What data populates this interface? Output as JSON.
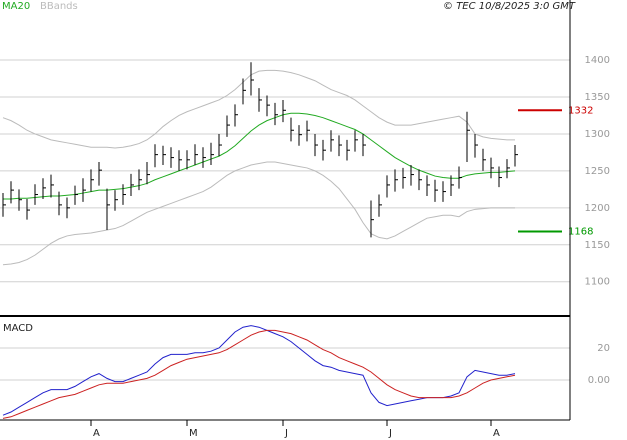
{
  "chart_data": [
    {
      "type": "ohlc",
      "legend": [
        {
          "name": "MA20",
          "color": "#22aa22"
        },
        {
          "name": "BBands",
          "color": "#bbbbbb"
        }
      ],
      "note": "© TEC 10/8/2025 3:0 GMT",
      "categories": [
        null,
        null,
        null,
        null,
        null,
        null,
        null,
        null,
        null,
        null,
        null,
        "A",
        null,
        null,
        null,
        null,
        null,
        null,
        null,
        null,
        null,
        null,
        null,
        "M",
        null,
        null,
        null,
        null,
        null,
        null,
        null,
        null,
        null,
        null,
        null,
        "J",
        null,
        null,
        null,
        null,
        null,
        null,
        null,
        null,
        null,
        null,
        null,
        null,
        "J",
        null,
        null,
        null,
        null,
        null,
        null,
        null,
        null,
        null,
        null,
        null,
        null,
        "A",
        null,
        null,
        null
      ],
      "color": "#000000",
      "values": [
        1204,
        1224,
        1211,
        1197,
        1218,
        1227,
        1231,
        1204,
        1200,
        1218,
        1224,
        1238,
        1251,
        1204,
        1211,
        1218,
        1231,
        1238,
        1245,
        1272,
        1272,
        1268,
        1265,
        1265,
        1272,
        1268,
        1272,
        1285,
        1312,
        1326,
        1359,
        1373,
        1346,
        1339,
        1326,
        1332,
        1305,
        1299,
        1305,
        1285,
        1278,
        1292,
        1285,
        1278,
        1292,
        1285,
        1184,
        1204,
        1231,
        1238,
        1241,
        1245,
        1238,
        1231,
        1224,
        1222,
        1231,
        1241,
        1305,
        1285,
        1265,
        1254,
        1241,
        1254,
        1272
      ],
      "high": [
        1220,
        1236,
        1225,
        1212,
        1232,
        1240,
        1245,
        1222,
        1214,
        1230,
        1240,
        1252,
        1262,
        1226,
        1224,
        1232,
        1246,
        1252,
        1262,
        1286,
        1284,
        1282,
        1278,
        1278,
        1286,
        1282,
        1288,
        1300,
        1325,
        1340,
        1375,
        1397,
        1362,
        1352,
        1342,
        1346,
        1322,
        1312,
        1318,
        1300,
        1292,
        1305,
        1298,
        1292,
        1305,
        1300,
        1210,
        1218,
        1244,
        1252,
        1254,
        1258,
        1252,
        1244,
        1238,
        1236,
        1244,
        1256,
        1330,
        1300,
        1280,
        1268,
        1256,
        1266,
        1285
      ],
      "low": [
        1188,
        1206,
        1196,
        1184,
        1204,
        1212,
        1214,
        1190,
        1186,
        1204,
        1208,
        1222,
        1230,
        1170,
        1196,
        1204,
        1216,
        1224,
        1232,
        1255,
        1258,
        1254,
        1250,
        1252,
        1258,
        1254,
        1258,
        1270,
        1296,
        1310,
        1340,
        1352,
        1330,
        1324,
        1312,
        1316,
        1290,
        1284,
        1290,
        1270,
        1264,
        1276,
        1270,
        1264,
        1276,
        1270,
        1160,
        1188,
        1214,
        1222,
        1226,
        1230,
        1224,
        1216,
        1208,
        1208,
        1216,
        1226,
        1262,
        1268,
        1250,
        1240,
        1228,
        1240,
        1256
      ],
      "ma20": {
        "color": "#22aa22",
        "values": [
          1212,
          1212,
          1213,
          1213,
          1214,
          1215,
          1216,
          1216,
          1217,
          1218,
          1220,
          1222,
          1224,
          1224,
          1225,
          1226,
          1228,
          1230,
          1233,
          1238,
          1242,
          1246,
          1250,
          1254,
          1258,
          1262,
          1266,
          1270,
          1276,
          1284,
          1294,
          1304,
          1312,
          1318,
          1322,
          1326,
          1328,
          1328,
          1327,
          1325,
          1322,
          1318,
          1314,
          1310,
          1306,
          1300,
          1292,
          1284,
          1276,
          1268,
          1262,
          1256,
          1251,
          1247,
          1243,
          1241,
          1240,
          1240,
          1244,
          1246,
          1247,
          1248,
          1248,
          1249,
          1250
        ]
      },
      "bands": {
        "color": "#bbbbbb",
        "upper": [
          1322,
          1318,
          1312,
          1305,
          1300,
          1296,
          1292,
          1290,
          1288,
          1286,
          1284,
          1282,
          1282,
          1282,
          1281,
          1282,
          1284,
          1287,
          1292,
          1300,
          1310,
          1318,
          1325,
          1330,
          1334,
          1338,
          1342,
          1346,
          1352,
          1360,
          1370,
          1380,
          1385,
          1386,
          1386,
          1385,
          1383,
          1380,
          1376,
          1372,
          1366,
          1360,
          1356,
          1352,
          1346,
          1338,
          1330,
          1322,
          1316,
          1312,
          1312,
          1312,
          1314,
          1316,
          1318,
          1320,
          1322,
          1324,
          1316,
          1300,
          1296,
          1294,
          1293,
          1292,
          1292
        ],
        "lower": [
          1123,
          1124,
          1126,
          1130,
          1136,
          1144,
          1152,
          1158,
          1162,
          1164,
          1165,
          1166,
          1168,
          1170,
          1172,
          1176,
          1182,
          1188,
          1194,
          1198,
          1202,
          1206,
          1210,
          1214,
          1218,
          1222,
          1228,
          1236,
          1244,
          1250,
          1254,
          1258,
          1260,
          1262,
          1262,
          1260,
          1258,
          1256,
          1254,
          1250,
          1244,
          1236,
          1226,
          1212,
          1198,
          1180,
          1165,
          1160,
          1158,
          1162,
          1168,
          1174,
          1180,
          1186,
          1188,
          1190,
          1190,
          1188,
          1195,
          1198,
          1199,
          1200,
          1200,
          1200,
          1200
        ]
      },
      "annotations": [
        {
          "value": 1332,
          "color": "#cc0000"
        },
        {
          "value": 1168,
          "color": "#009900"
        }
      ],
      "ylim": [
        1055,
        1465
      ],
      "yticks": [
        1100,
        1150,
        1200,
        1250,
        1300,
        1350,
        1400
      ],
      "grid": true
    },
    {
      "type": "line",
      "title": "MACD",
      "series": [
        {
          "color": "#2222cc",
          "values": [
            -22,
            -20,
            -17,
            -14,
            -11,
            -8,
            -6,
            -6,
            -6,
            -4,
            -1,
            2,
            4,
            1,
            -1,
            -1,
            1,
            3,
            5,
            10,
            14,
            16,
            16,
            16,
            17,
            17,
            18,
            20,
            25,
            30,
            33,
            34,
            33,
            31,
            29,
            27,
            24,
            20,
            16,
            12,
            9,
            8,
            6,
            5,
            4,
            3,
            -8,
            -14,
            -16,
            -15,
            -14,
            -13,
            -12,
            -11,
            -11,
            -11,
            -10,
            -8,
            2,
            6,
            5,
            4,
            3,
            3,
            4
          ]
        },
        {
          "color": "#cc2222",
          "values": [
            -24,
            -23,
            -21,
            -19,
            -17,
            -15,
            -13,
            -11,
            -10,
            -9,
            -7,
            -5,
            -3,
            -2,
            -2,
            -2,
            -1,
            0,
            1,
            3,
            6,
            9,
            11,
            13,
            14,
            15,
            16,
            17,
            19,
            22,
            25,
            28,
            30,
            31,
            31,
            30,
            29,
            27,
            25,
            22,
            19,
            17,
            14,
            12,
            10,
            8,
            5,
            1,
            -3,
            -6,
            -8,
            -10,
            -11,
            -11,
            -11,
            -11,
            -11,
            -10,
            -8,
            -5,
            -2,
            0,
            1,
            2,
            3
          ]
        }
      ],
      "ylim": [
        -25,
        38.75
      ],
      "yticks": [
        {
          "value": 0,
          "label": "0.00"
        },
        20
      ],
      "grid": true
    }
  ]
}
